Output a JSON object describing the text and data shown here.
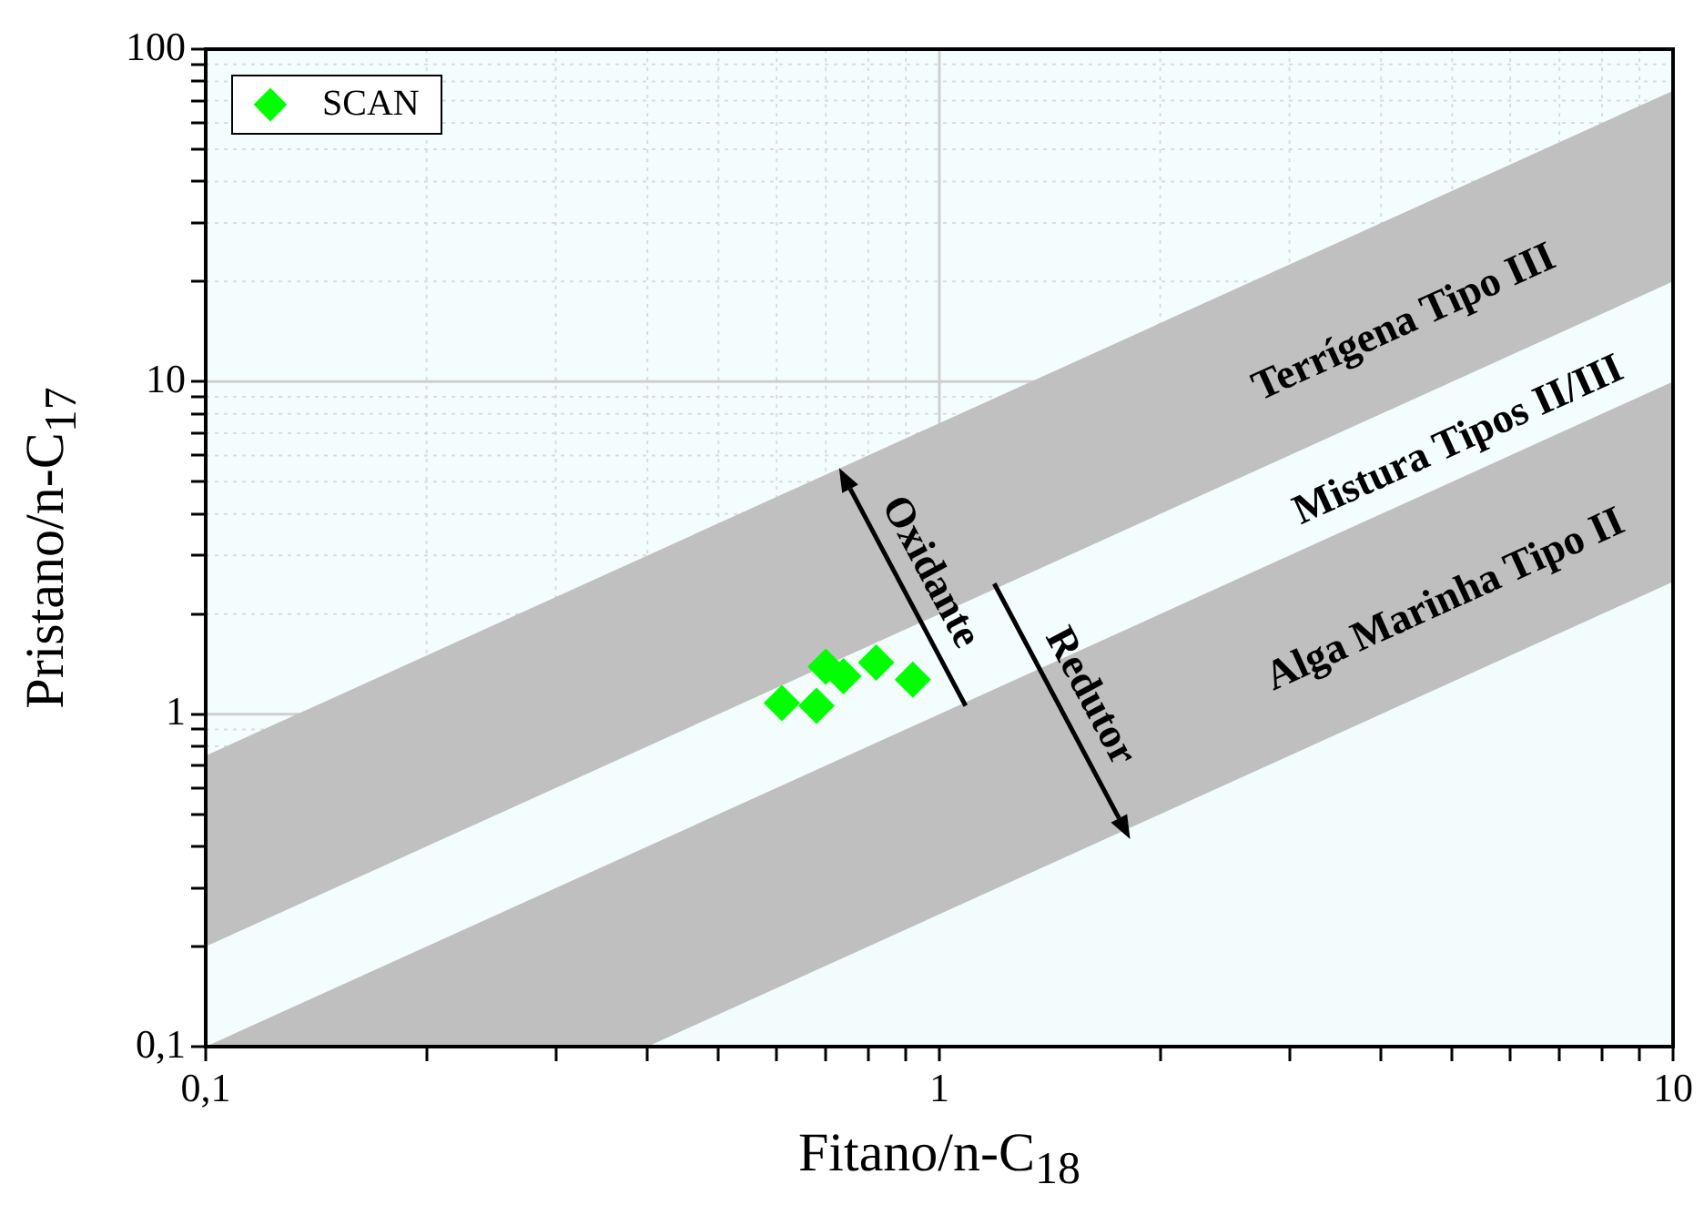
{
  "chart_data": {
    "type": "scatter",
    "xlabel": "Fitano/n-C$_{18}$",
    "ylabel": "Pristano/n-C$_{17}$",
    "log": "xy",
    "grid": true,
    "legend": "top left",
    "xlim": [
      0.1,
      10
    ],
    "ylim": [
      0.1,
      100
    ],
    "xticks": [
      {
        "value": 0.1,
        "label": "0,1"
      },
      {
        "value": 0.2,
        "label": null
      },
      {
        "value": 0.3,
        "label": null
      },
      {
        "value": 0.4,
        "label": null
      },
      {
        "value": 0.5,
        "label": null
      },
      {
        "value": 0.6,
        "label": null
      },
      {
        "value": 0.7,
        "label": null
      },
      {
        "value": 0.8,
        "label": null
      },
      {
        "value": 0.9,
        "label": null
      },
      1,
      {
        "value": 2,
        "label": null
      },
      {
        "value": 3,
        "label": null
      },
      {
        "value": 4,
        "label": null
      },
      {
        "value": 5,
        "label": null
      },
      {
        "value": 6,
        "label": null
      },
      {
        "value": 7,
        "label": null
      },
      {
        "value": 8,
        "label": null
      },
      {
        "value": 9,
        "label": null
      },
      10
    ],
    "yticks": [
      {
        "value": 0.1,
        "label": "0,1"
      },
      {
        "value": 0.2,
        "label": null
      },
      {
        "value": 0.3,
        "label": null
      },
      {
        "value": 0.4,
        "label": null
      },
      {
        "value": 0.5,
        "label": null
      },
      {
        "value": 0.6,
        "label": null
      },
      {
        "value": 0.7,
        "label": null
      },
      {
        "value": 0.8,
        "label": null
      },
      {
        "value": 0.9,
        "label": null
      },
      1,
      {
        "value": 2,
        "label": null
      },
      {
        "value": 3,
        "label": null
      },
      {
        "value": 4,
        "label": null
      },
      {
        "value": 5,
        "label": null
      },
      {
        "value": 6,
        "label": null
      },
      {
        "value": 7,
        "label": null
      },
      {
        "value": 8,
        "label": null
      },
      {
        "value": 9,
        "label": null
      },
      10,
      {
        "value": 20,
        "label": null
      },
      {
        "value": 30,
        "label": null
      },
      {
        "value": 40,
        "label": null
      },
      {
        "value": 50,
        "label": null
      },
      {
        "value": 60,
        "label": null
      },
      {
        "value": 70,
        "label": null
      },
      {
        "value": 80,
        "label": null
      },
      {
        "value": 90,
        "label": null
      },
      100
    ],
    "series": [
      {
        "type": "area",
        "color": "#c0c0c0",
        "x": [
          0.1,
          10
        ],
        "values": [
          0.75,
          75
        ]
      },
      {
        "type": "area",
        "color": "#f4fdfd",
        "x": [
          0.1,
          10
        ],
        "values": [
          0.2,
          20
        ]
      },
      {
        "type": "area",
        "color": "#bfbfbf",
        "x": [
          0.1,
          10
        ],
        "values": [
          0.1,
          10
        ]
      },
      {
        "type": "area",
        "color": "#f3fcfc",
        "x": [
          0.4,
          10
        ],
        "values": [
          0.1,
          2.5
        ]
      },
      {
        "type": "scatter",
        "name": "SCAN",
        "color": "#00ff00",
        "marker": "diamond",
        "x": [
          0.61,
          0.68,
          0.7,
          0.74,
          0.82,
          0.92
        ],
        "values": [
          1.08,
          1.06,
          1.39,
          1.3,
          1.43,
          1.27
        ]
      }
    ],
    "annotations": [
      "Terrígena Tipo III",
      "Mistura Tipos II/III",
      "Alga Marinha Tipo II",
      {
        "text": "Oxidante",
        "x": 0.73,
        "y": 5.5
      },
      "Redutor"
    ]
  }
}
